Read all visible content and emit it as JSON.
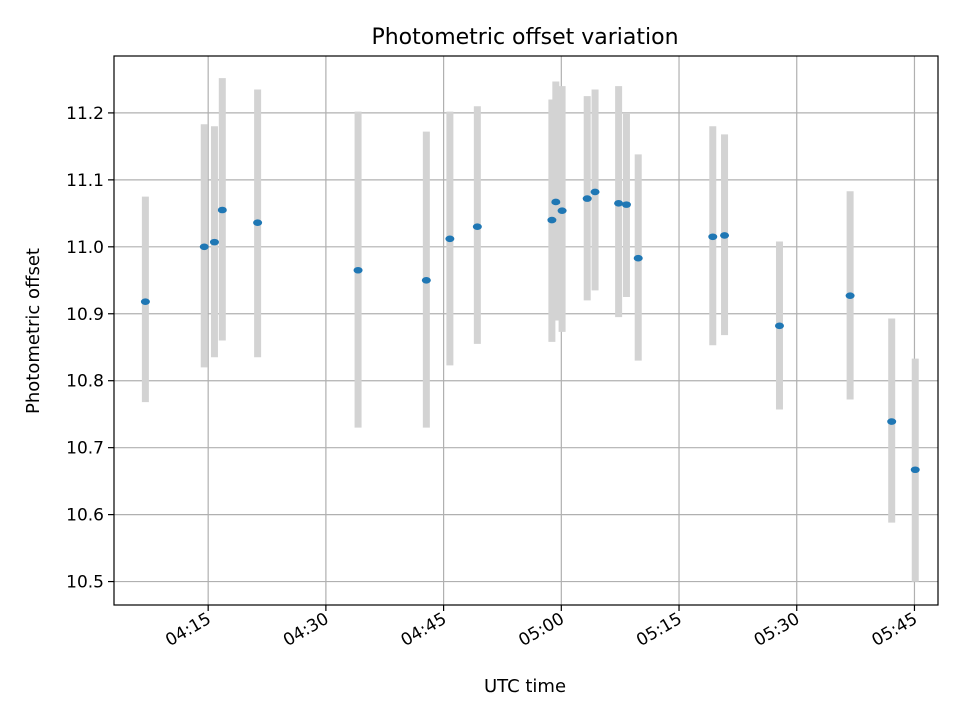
{
  "chart_data": {
    "type": "scatter",
    "title": "Photometric offset variation",
    "xlabel": "UTC time",
    "ylabel": "Photometric offset",
    "xlim": [
      "04:03:00",
      "05:48:00"
    ],
    "ylim": [
      10.465,
      11.285
    ],
    "x_ticks": [
      "04:15",
      "04:30",
      "04:45",
      "05:00",
      "05:15",
      "05:30",
      "05:45"
    ],
    "y_ticks": [
      "10.5",
      "10.6",
      "10.7",
      "10.8",
      "10.9",
      "11.0",
      "11.1",
      "11.2"
    ],
    "grid": true,
    "colors": {
      "points": "#1f77b4",
      "error_bars": "#d3d3d3",
      "grid": "#b0b0b0"
    },
    "series": [
      {
        "x": [
          "04:07:00",
          "04:14:30",
          "04:15:48",
          "04:16:48",
          "04:21:18",
          "04:34:06",
          "04:42:48",
          "04:45:48",
          "04:49:18",
          "04:58:48",
          "04:59:18",
          "05:00:06",
          "05:03:18",
          "05:04:18",
          "05:07:18",
          "05:08:18",
          "05:09:48",
          "05:19:18",
          "05:20:48",
          "05:27:48",
          "05:36:48",
          "05:42:06",
          "05:45:06"
        ],
        "y": [
          10.918,
          11.0,
          11.007,
          11.055,
          11.036,
          10.965,
          10.95,
          11.012,
          11.03,
          11.04,
          11.067,
          11.054,
          11.072,
          11.082,
          11.065,
          11.063,
          10.983,
          11.015,
          11.017,
          10.882,
          10.927,
          10.739,
          10.667
        ],
        "ylow": [
          10.768,
          10.82,
          10.835,
          10.86,
          10.835,
          10.73,
          10.73,
          10.823,
          10.855,
          10.858,
          10.89,
          10.873,
          10.92,
          10.935,
          10.895,
          10.925,
          10.83,
          10.853,
          10.868,
          10.757,
          10.772,
          10.588,
          10.5
        ],
        "yhigh": [
          11.075,
          11.183,
          11.18,
          11.252,
          11.235,
          11.202,
          11.172,
          11.202,
          11.21,
          11.22,
          11.247,
          11.24,
          11.225,
          11.235,
          11.24,
          11.2,
          11.138,
          11.18,
          11.168,
          11.008,
          11.083,
          10.893,
          10.833
        ]
      }
    ]
  }
}
